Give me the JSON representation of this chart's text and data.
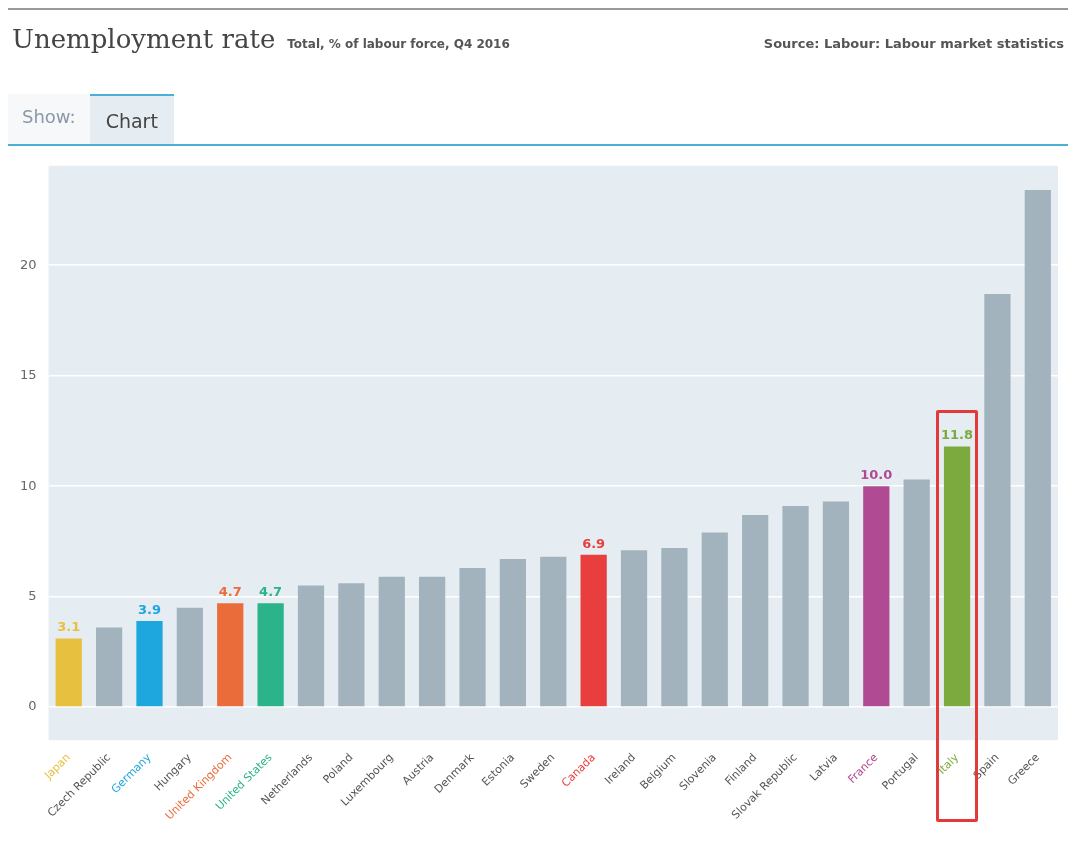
{
  "chart_data": {
    "type": "bar",
    "title": "Unemployment rate",
    "subtitle": "Total, % of labour force, Q4 2016",
    "annotations": [
      "Source: Labour: Labour market statistics",
      "Show:",
      "Chart"
    ],
    "categories": [
      "Japan",
      "Czech Republic",
      "Germany",
      "Hungary",
      "United Kingdom",
      "United States",
      "Netherlands",
      "Poland",
      "Luxembourg",
      "Austria",
      "Denmark",
      "Estonia",
      "Sweden",
      "Canada",
      "Ireland",
      "Belgium",
      "Slovenia",
      "Finland",
      "Slovak Republic",
      "Latvia",
      "France",
      "Portugal",
      "Italy",
      "Spain",
      "Greece"
    ],
    "values": [
      3.1,
      3.6,
      3.9,
      4.5,
      4.7,
      4.7,
      5.5,
      5.6,
      5.9,
      5.9,
      6.3,
      6.7,
      6.8,
      6.9,
      7.1,
      7.2,
      7.9,
      8.7,
      9.1,
      9.3,
      10.0,
      10.3,
      11.8,
      18.7,
      23.4
    ],
    "colors": [
      "#e8c040",
      "#a2b3bd",
      "#1ea6de",
      "#a2b3bd",
      "#ea6c3a",
      "#2bb38a",
      "#a2b3bd",
      "#a2b3bd",
      "#a2b3bd",
      "#a2b3bd",
      "#a2b3bd",
      "#a2b3bd",
      "#a2b3bd",
      "#e83e3e",
      "#a2b3bd",
      "#a2b3bd",
      "#a2b3bd",
      "#a2b3bd",
      "#a2b3bd",
      "#a2b3bd",
      "#b04a92",
      "#a2b3bd",
      "#7caa3e",
      "#a2b3bd",
      "#a2b3bd"
    ],
    "value_labels": [
      "3.1",
      null,
      "3.9",
      null,
      "4.7",
      "4.7",
      null,
      null,
      null,
      null,
      null,
      null,
      null,
      "6.9",
      null,
      null,
      null,
      null,
      null,
      null,
      "10.0",
      null,
      "11.8",
      null,
      null
    ],
    "ylim": [
      -1.5,
      24.5
    ],
    "yticks": [
      0,
      5,
      10,
      15,
      20
    ],
    "grid": "y",
    "legend": false
  }
}
